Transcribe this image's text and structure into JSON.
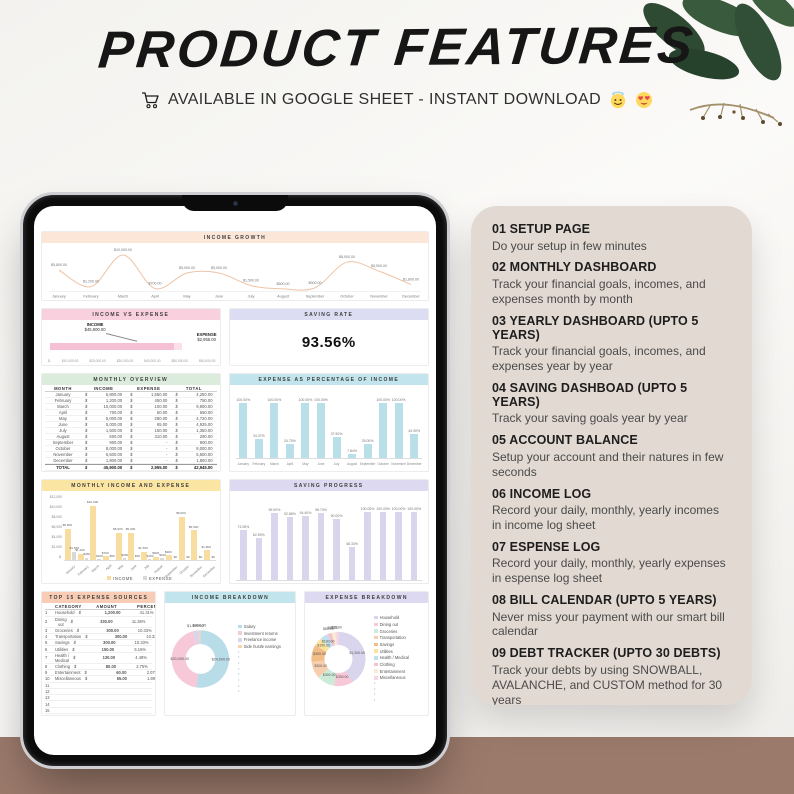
{
  "page": {
    "title": "PRODUCT FEATURES",
    "subtitle": "AVAILABLE IN GOOGLE SHEET - INSTANT DOWNLOAD",
    "subtitle_icons": [
      "cart-icon",
      "halo-smile-emoji",
      "heart-eyes-emoji"
    ]
  },
  "colors": {
    "page_bg": "#f6f5f3",
    "desk": "#9b7a6b",
    "feature_card_bg": "#e2dad2",
    "tablet_frame": "#0b0b0c"
  },
  "features": [
    {
      "number": "01",
      "title": "SETUP PAGE",
      "description": "Do your setup in few minutes"
    },
    {
      "number": "02",
      "title": "MONTHLY DASHBOARD",
      "description": "Track your financial goals, incomes, and expenses month by month"
    },
    {
      "number": "03",
      "title": "YEARLY DASHBOARD (UPTO 5 YEARS)",
      "description": "Track your financial goals, incomes, and expenses year by year"
    },
    {
      "number": "04",
      "title": "SAVING DASHBOAD (UPTO 5 YEARS)",
      "description": "Track your saving goals year by year"
    },
    {
      "number": "05",
      "title": "ACCOUNT BALANCE",
      "description": "Setup your account and their natures in few seconds"
    },
    {
      "number": "06",
      "title": "INCOME LOG",
      "description": "Record your daily, monthly, yearly incomes in income log sheet"
    },
    {
      "number": "07",
      "title": "ESPENSE LOG",
      "description": "Record your daily, monthly, yearly expenses in espense log sheet"
    },
    {
      "number": "08",
      "title": "BILL CALENDAR (UPTO 5 YEARS)",
      "description": "Never miss your payment with our smart bill calendar"
    },
    {
      "number": "09",
      "title": "DEBT TRACKER (UPTO 30 DEBTS)",
      "description": "Track your debts by using SNOWBALL, AVALANCHE, and CUSTOM method for 30 years"
    }
  ],
  "dashboard": {
    "saving_rate": {
      "title": "SAVING RATE",
      "value": "93.56%",
      "header_color": "#dcdcf2"
    }
  },
  "chart_data": [
    {
      "id": "income_growth",
      "type": "line",
      "title": "INCOME GROWTH",
      "categories": [
        "January",
        "February",
        "March",
        "April",
        "May",
        "June",
        "July",
        "August",
        "September",
        "October",
        "November",
        "December"
      ],
      "values": [
        5800,
        1200,
        10000,
        700,
        5000,
        5000,
        1500,
        600,
        900,
        8000,
        5500,
        1800
      ],
      "labels": [
        "$5,800.00",
        "$1,200.00",
        "$10,000.00",
        "$700.00",
        "$5,000.00",
        "$5,000.00",
        "$1,500.00",
        "$600.00",
        "$900.00",
        "$8,000.00",
        "$5,500.00",
        "$1,800.00"
      ],
      "ylim": [
        0,
        10000
      ],
      "color": "#eec3a5",
      "header_color": "#fbe6d8",
      "grid": false,
      "legend": "none"
    },
    {
      "id": "income_vs_expense",
      "type": "bar",
      "orientation": "horizontal",
      "title": "INCOME VS EXPENSE",
      "series": [
        {
          "name": "INCOME",
          "value": 45900,
          "label": "$45,900.00",
          "color": "#f5bfd4"
        },
        {
          "name": "EXPENSE",
          "value": 2955,
          "label": "$2,955.00",
          "color": "#fbdfe9"
        }
      ],
      "axis_ticks": [
        "$-",
        "$10,000.00",
        "$20,000.00",
        "$30,000.00",
        "$40,000.00",
        "$50,000.00",
        "$60,000.00"
      ],
      "xlim": [
        0,
        60000
      ],
      "header_color": "#f8d0de"
    },
    {
      "id": "monthly_overview",
      "type": "table",
      "variant": "overview",
      "title": "MONTHLY OVERVIEW",
      "columns": [
        "MONTH",
        "INCOME",
        "EXPENSE",
        "TOTAL"
      ],
      "rows": [
        [
          "January",
          "5,800.00",
          "1,550.00",
          "4,250.00"
        ],
        [
          "February",
          "1,200.00",
          "450.00",
          "750.00"
        ],
        [
          "March",
          "10,000.00",
          "100.00",
          "9,900.00"
        ],
        [
          "April",
          "700.00",
          "50.00",
          "650.00"
        ],
        [
          "May",
          "5,000.00",
          "280.00",
          "4,720.00"
        ],
        [
          "June",
          "5,000.00",
          "65.00",
          "4,935.00"
        ],
        [
          "July",
          "1,500.00",
          "150.00",
          "1,350.00"
        ],
        [
          "August",
          "600.00",
          "310.00",
          "290.00"
        ],
        [
          "September",
          "900.00",
          "-",
          "900.00"
        ],
        [
          "October",
          "8,000.00",
          "-",
          "8,000.00"
        ],
        [
          "November",
          "5,500.00",
          "-",
          "5,500.00"
        ],
        [
          "December",
          "1,800.00",
          "-",
          "1,800.00"
        ],
        [
          "TOTAL",
          "45,900.00",
          "2,955.00",
          "42,945.00"
        ]
      ],
      "header_color": "#dcecdc"
    },
    {
      "id": "expense_pct",
      "type": "bar",
      "title": "EXPENSE AS PERCENTAGE OF INCOME",
      "categories": [
        "January",
        "February",
        "March",
        "April",
        "May",
        "June",
        "July",
        "August",
        "September",
        "October",
        "November",
        "December"
      ],
      "values": [
        100,
        34.37,
        100,
        24.75,
        100,
        100,
        37.9,
        7.84,
        25.0,
        100,
        100,
        43.9
      ],
      "labels": [
        "100.00%",
        "34.37%",
        "100.00%",
        "24.75%",
        "100.00%",
        "100.00%",
        "37.90%",
        "7.84%",
        "25.00%",
        "100.00%",
        "100.00%",
        "43.90%"
      ],
      "ylim": [
        0,
        100
      ],
      "color": "#b9dfe9",
      "header_color": "#c2e4ec",
      "grid": false
    },
    {
      "id": "monthly_income_expense",
      "type": "bar",
      "variant": "grouped",
      "title": "MONTHLY INCOME AND EXPENSE",
      "categories": [
        "January",
        "February",
        "March",
        "April",
        "May",
        "June",
        "July",
        "August",
        "September",
        "October",
        "November",
        "December"
      ],
      "series": [
        {
          "name": "INCOME",
          "color": "#f7dd9f",
          "values": [
            5800,
            1200,
            10000,
            700,
            5000,
            5000,
            1500,
            600,
            900,
            8000,
            5500,
            1800
          ],
          "labels": [
            "$5,800",
            "$1,200",
            "$10,000",
            "$700",
            "$5,000",
            "$5,000",
            "$1,500",
            "$600",
            "$900",
            "$8,000",
            "$5,500",
            "$1,800"
          ]
        },
        {
          "name": "EXPENSE",
          "color": "#d9d9d9",
          "values": [
            1550,
            450,
            100,
            50,
            280,
            65,
            150,
            310,
            0,
            0,
            0,
            0
          ],
          "labels": [
            "$1,550",
            "$450",
            "$100",
            "$50",
            "$280",
            "$65",
            "$150",
            "$310",
            "$0",
            "$0",
            "$0",
            "$0"
          ]
        }
      ],
      "y_ticks": [
        "$12,000",
        "$10,000",
        "$8,000",
        "$6,000",
        "$4,000",
        "$2,000",
        "$-"
      ],
      "ylim": [
        0,
        12000
      ],
      "header_color": "#fbe5a3",
      "legend_position": "bottom"
    },
    {
      "id": "saving_progress",
      "type": "bar",
      "title": "SAVING PROGRESS",
      "categories": [],
      "values": [
        73.28,
        62.5,
        99.0,
        92.86,
        94.4,
        98.7,
        90.0,
        48.33,
        100,
        100,
        100,
        100
      ],
      "labels": [
        "73.28%",
        "62.50%",
        "99.00%",
        "92.86%",
        "94.40%",
        "98.70%",
        "90.00%",
        "48.33%",
        "100.00%",
        "100.00%",
        "100.00%",
        "100.00%"
      ],
      "ylim": [
        0,
        100
      ],
      "color": "#d8d5ec",
      "header_color": "#dcd9f0",
      "grid": false
    },
    {
      "id": "top15",
      "type": "table",
      "variant": "top15",
      "title": "TOP 15 EXPENSE SOURCES",
      "columns": [
        "CATEGORY",
        "AMOUNT",
        "PERCENTAGE"
      ],
      "rows": [
        [
          "1",
          "Household",
          "1,200.00",
          "41.31%"
        ],
        [
          "2",
          "Dining out",
          "330.00",
          "11.36%"
        ],
        [
          "3",
          "Groceries",
          "300.00",
          "10.33%"
        ],
        [
          "4",
          "Transportation",
          "300.00",
          "10.33%"
        ],
        [
          "5",
          "Savings",
          "300.00",
          "10.33%"
        ],
        [
          "6",
          "Utilities",
          "150.00",
          "5.16%"
        ],
        [
          "7",
          "Health / Medical",
          "130.00",
          "4.48%"
        ],
        [
          "8",
          "Clothing",
          "80.00",
          "2.75%"
        ],
        [
          "9",
          "Entertainment",
          "60.00",
          "2.07%"
        ],
        [
          "10",
          "Miscellaneous",
          "55.00",
          "1.89%"
        ],
        [
          "11",
          "",
          "",
          ""
        ],
        [
          "12",
          "",
          "",
          ""
        ],
        [
          "13",
          "",
          "",
          ""
        ],
        [
          "14",
          "",
          "",
          ""
        ],
        [
          "15",
          "",
          "",
          ""
        ]
      ],
      "header_color": "#f9cdb5"
    },
    {
      "id": "income_breakdown",
      "type": "pie",
      "title": "INCOME BREAKDOWN",
      "slices": [
        {
          "name": "Salary",
          "value": 24000,
          "label": "$24,000.00",
          "color": "#b9dde8"
        },
        {
          "name": "Investment returns",
          "value": 20000,
          "label": "$20,000.00",
          "color": "#f6c8d8"
        },
        {
          "name": "Freelance income",
          "value": 1500,
          "label": "$1,500.00",
          "color": "#d8d5ec"
        },
        {
          "name": "Side hustle earnings",
          "value": 400,
          "label": "$400.00",
          "color": "#f8d3ae"
        }
      ],
      "legend_position": "right",
      "legend_extra_dots": 8,
      "header_color": "#c2e4ec"
    },
    {
      "id": "expense_breakdown",
      "type": "pie",
      "title": "EXPENSE BREAKDOWN",
      "slices": [
        {
          "name": "Household",
          "value": 1200,
          "label": "$1,200.00",
          "color": "#d8d5ec"
        },
        {
          "name": "Dining out",
          "value": 330,
          "label": "$330.00",
          "color": "#f6c8d8"
        },
        {
          "name": "Groceries",
          "value": 300,
          "label": "$300.00",
          "color": "#cdebd9"
        },
        {
          "name": "Transportation",
          "value": 300,
          "label": "$300.00",
          "color": "#f8cfae"
        },
        {
          "name": "Savings",
          "value": 300,
          "label": "$300.00",
          "color": "#f3bd88"
        },
        {
          "name": "Utilities",
          "value": 150,
          "label": "$150.00",
          "color": "#fbe39d"
        },
        {
          "name": "Health / Medical",
          "value": 130,
          "label": "$130.00",
          "color": "#bfe0ee"
        },
        {
          "name": "Clothing",
          "value": 80,
          "label": "$80.00",
          "color": "#f3c3cf"
        },
        {
          "name": "Entertainment",
          "value": 60,
          "label": "$60.00",
          "color": "#f9ecd2"
        },
        {
          "name": "Miscellaneous",
          "value": 55,
          "label": "$55.00",
          "color": "#f8d7e2"
        }
      ],
      "legend_position": "right",
      "legend_extra_dots": 4,
      "header_color": "#dcd9f0"
    }
  ]
}
